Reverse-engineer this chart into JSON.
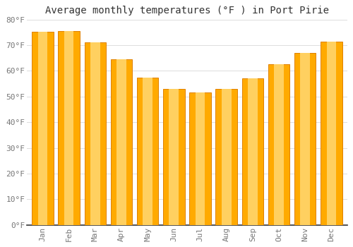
{
  "title": "Average monthly temperatures (°F ) in Port Pirie",
  "months": [
    "Jan",
    "Feb",
    "Mar",
    "Apr",
    "May",
    "Jun",
    "Jul",
    "Aug",
    "Sep",
    "Oct",
    "Nov",
    "Dec"
  ],
  "values": [
    75.2,
    75.4,
    71.1,
    64.6,
    57.5,
    53.1,
    51.5,
    53.1,
    57.0,
    62.6,
    67.1,
    71.4
  ],
  "bar_color": "#FFAA00",
  "bar_edge_color": "#E08000",
  "background_color": "#FFFFFF",
  "grid_color": "#DDDDDD",
  "text_color": "#777777",
  "axis_line_color": "#333333",
  "ylim": [
    0,
    80
  ],
  "yticks": [
    0,
    10,
    20,
    30,
    40,
    50,
    60,
    70,
    80
  ],
  "ytick_labels": [
    "0°F",
    "10°F",
    "20°F",
    "30°F",
    "40°F",
    "50°F",
    "60°F",
    "70°F",
    "80°F"
  ],
  "title_fontsize": 10,
  "tick_fontsize": 8,
  "font_family": "monospace"
}
